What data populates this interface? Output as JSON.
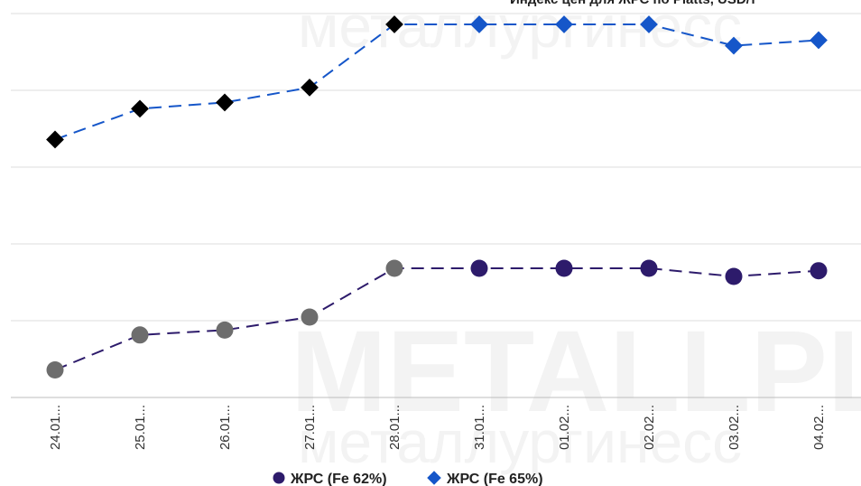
{
  "watermark": {
    "brand": "METALLPL",
    "subtitle_top": "металлургинесс",
    "subtitle_bottom": "металлургинесс"
  },
  "chart_data": {
    "type": "line",
    "title": "Индекс цен для ЖРС по Platts, USD/т",
    "categories": [
      "24.01...",
      "25.01...",
      "26.01...",
      "27.01...",
      "28.01...",
      "31.01...",
      "01.02...",
      "02.02...",
      "03.02...",
      "04.02..."
    ],
    "series": [
      {
        "name": "ЖРС (Fe 62%)",
        "color": "#2d1b6b",
        "marker": "circle",
        "values": [
          -125,
          -82,
          -76,
          -60,
          0,
          0,
          0,
          0,
          -10,
          -3
        ],
        "highlight_color": "#6d6d6d",
        "highlight_points": [
          0,
          1,
          2,
          3,
          4
        ]
      },
      {
        "name": "ЖРС  (Fe 65%)",
        "color": "#1556c9",
        "marker": "diamond",
        "values": [
          -146,
          -107,
          -99,
          -80,
          0,
          0,
          0,
          0,
          -27,
          -20
        ],
        "highlight_color": "#000000",
        "highlight_points": [
          0,
          1,
          2,
          3,
          4
        ]
      }
    ],
    "grid": true,
    "legend_position": "bottom"
  }
}
